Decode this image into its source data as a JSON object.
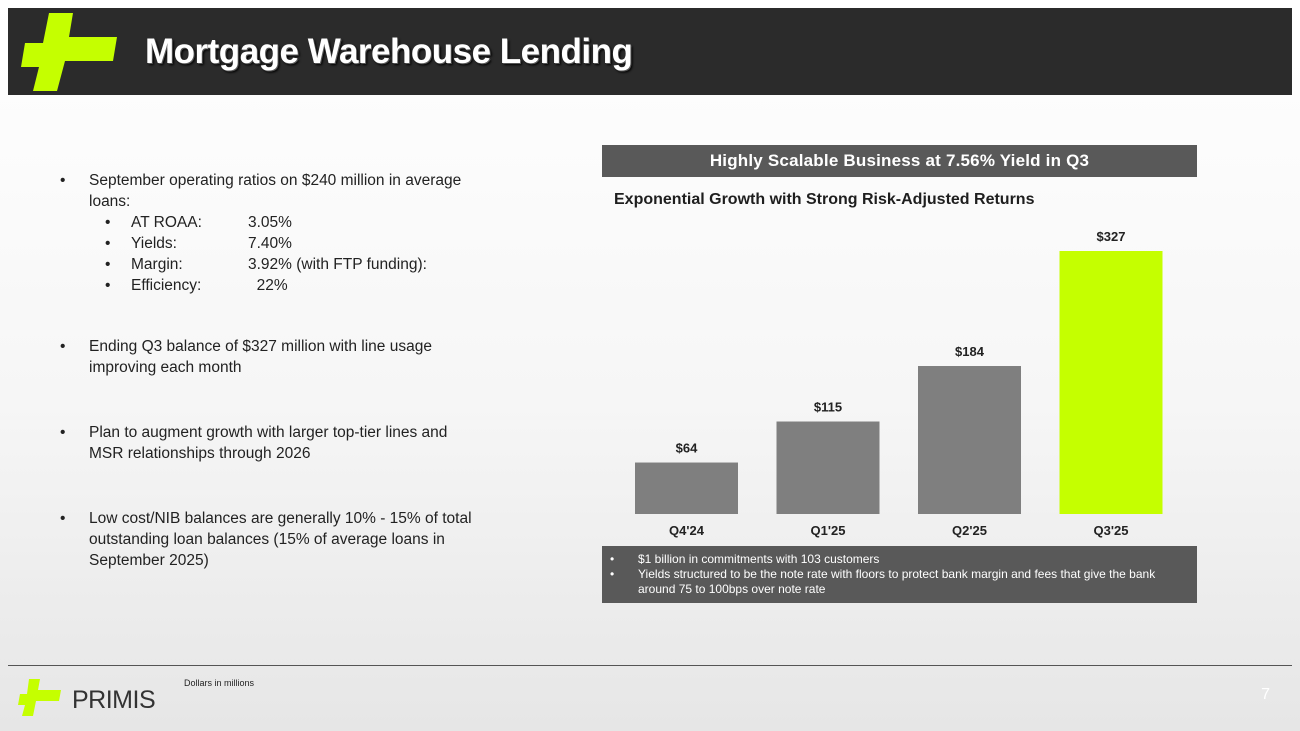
{
  "header": {
    "title": "Mortgage Warehouse Lending",
    "logo_icon": "plus-cross-icon",
    "brand_color": "#c5ff00"
  },
  "bullets": [
    {
      "text": "September operating ratios on $240 million in average loans:",
      "sub": [
        {
          "label": "AT ROAA:",
          "value": "3.05%"
        },
        {
          "label": "Yields:",
          "value": "7.40%"
        },
        {
          "label": "Margin:",
          "value": "3.92% (with FTP funding):"
        },
        {
          "label": "Efficiency:",
          "value": "  22%"
        }
      ]
    },
    {
      "text": "Ending Q3 balance of $327 million with line usage improving each month"
    },
    {
      "text": "Plan to augment growth with larger top-tier lines and MSR relationships through 2026"
    },
    {
      "text": "Low cost/NIB balances are generally 10% - 15% of total outstanding loan balances (15% of average loans in September 2025)"
    }
  ],
  "panel": {
    "header": "Highly Scalable Business at 7.56% Yield in Q3",
    "notes": [
      "$1 billion in commitments with 103 customers",
      "Yields structured to be the note rate with floors to protect bank margin and fees that give the bank around 75 to 100bps over note rate"
    ]
  },
  "chart_data": {
    "type": "bar",
    "title": "Exponential Growth with Strong Risk-Adjusted Returns",
    "categories": [
      "Q4'24",
      "Q1'25",
      "Q2'25",
      "Q3'25"
    ],
    "values": [
      64,
      115,
      184,
      327
    ],
    "data_labels": [
      "$64",
      "$115",
      "$184",
      "$327"
    ],
    "bar_colors": [
      "#7f7f7f",
      "#7f7f7f",
      "#7f7f7f",
      "#c5ff00"
    ],
    "xlabel": "",
    "ylabel": "",
    "grid": false,
    "legend": false
  },
  "footer": {
    "brand": "PRIMIS",
    "note": "Dollars in millions",
    "page_number": "7"
  }
}
